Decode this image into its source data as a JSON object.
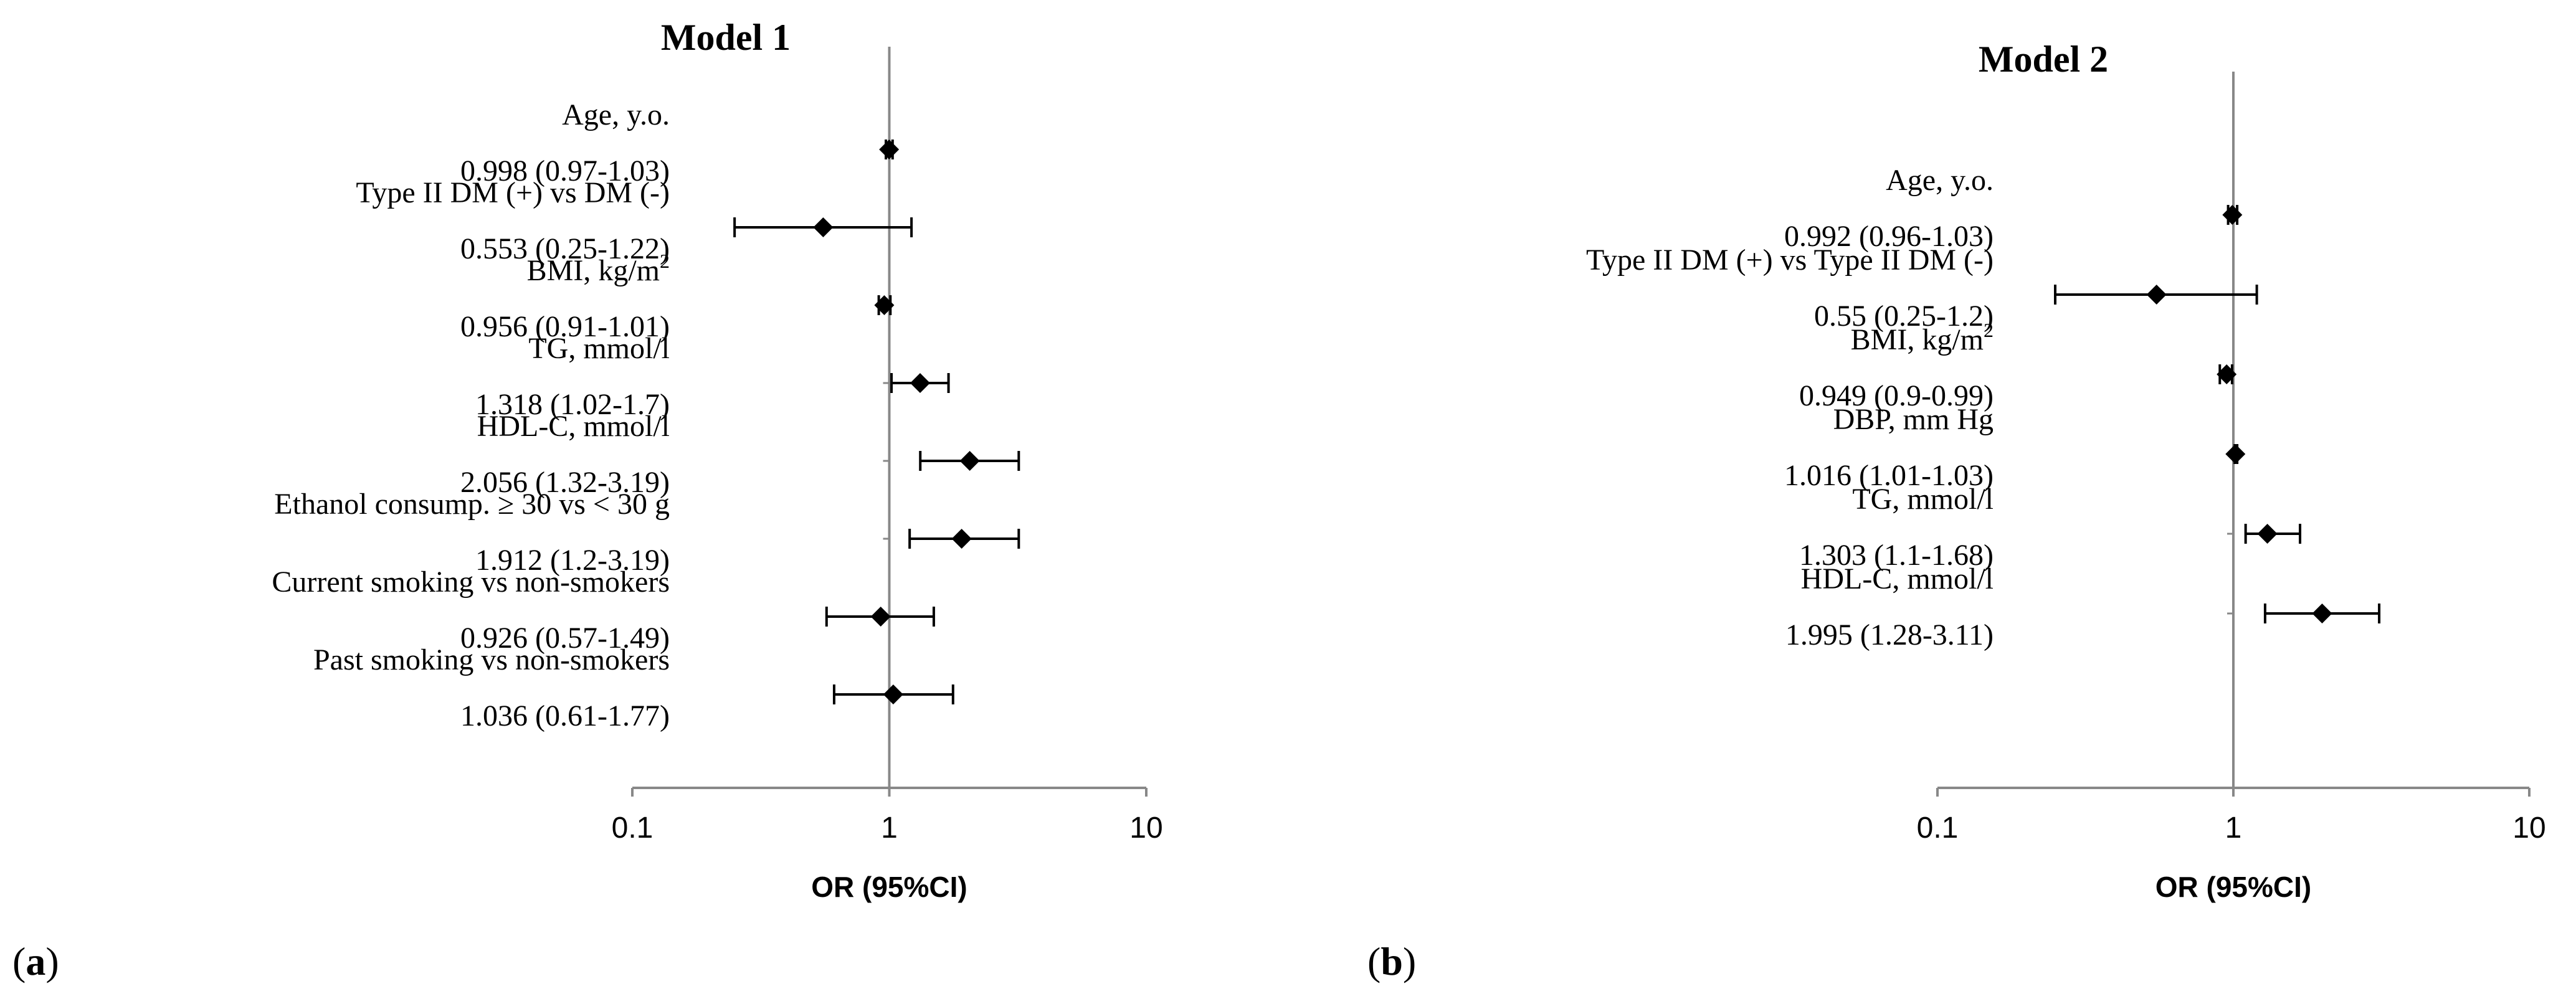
{
  "panel_labels": {
    "a": "a",
    "b": "b"
  },
  "chart_data": [
    {
      "type": "forest",
      "title": "Model 1",
      "xlabel": "OR (95%CI)",
      "xscale": "log",
      "xlim": [
        0.1,
        10
      ],
      "xticks": [
        "0.1",
        "1",
        "10"
      ],
      "reference_line": 1,
      "rows": [
        {
          "label": "Age, y.o.",
          "ci_text": "0.998 (0.97-1.03)",
          "or": 0.998,
          "lo": 0.97,
          "hi": 1.03
        },
        {
          "label": "Type II DM (+) vs DM (-)",
          "ci_text": "0.553 (0.25-1.22)",
          "or": 0.553,
          "lo": 0.25,
          "hi": 1.22
        },
        {
          "label": "BMI, kg/m",
          "sup": "2",
          "ci_text": "0.956 (0.91-1.01)",
          "or": 0.956,
          "lo": 0.91,
          "hi": 1.01
        },
        {
          "label": "TG, mmol/l",
          "ci_text": "1.318 (1.02-1.7)",
          "or": 1.318,
          "lo": 1.02,
          "hi": 1.7
        },
        {
          "label": "HDL-C, mmol/l",
          "ci_text": "2.056 (1.32-3.19)",
          "or": 2.056,
          "lo": 1.32,
          "hi": 3.19
        },
        {
          "label": "Ethanol consump. ≥ 30 vs < 30 g",
          "ci_text": "1.912 (1.2-3.19)",
          "or": 1.912,
          "lo": 1.2,
          "hi": 3.19
        },
        {
          "label": "Current smoking vs non-smokers",
          "ci_text": "0.926 (0.57-1.49)",
          "or": 0.926,
          "lo": 0.57,
          "hi": 1.49
        },
        {
          "label": "Past smoking vs non-smokers",
          "ci_text": "1.036 (0.61-1.77)",
          "or": 1.036,
          "lo": 0.61,
          "hi": 1.77
        }
      ]
    },
    {
      "type": "forest",
      "title": "Model 2",
      "xlabel": "OR (95%CI)",
      "xscale": "log",
      "xlim": [
        0.1,
        10
      ],
      "xticks": [
        "0.1",
        "1",
        "10"
      ],
      "reference_line": 1,
      "rows": [
        {
          "label": "Age, y.o.",
          "ci_text": "0.992 (0.96-1.03)",
          "or": 0.992,
          "lo": 0.96,
          "hi": 1.03
        },
        {
          "label": "Type II DM (+) vs Type II DM (-)",
          "ci_text": "0.55 (0.25-1.2)",
          "or": 0.55,
          "lo": 0.25,
          "hi": 1.2
        },
        {
          "label": "BMI, kg/m",
          "sup": "2",
          "ci_text": "0.949 (0.9-0.99)",
          "or": 0.949,
          "lo": 0.9,
          "hi": 0.99
        },
        {
          "label": "DBP, mm Hg",
          "ci_text": "1.016 (1.01-1.03)",
          "or": 1.016,
          "lo": 1.01,
          "hi": 1.03
        },
        {
          "label": "TG, mmol/l",
          "ci_text": "1.303 (1.1-1.68)",
          "or": 1.303,
          "lo": 1.1,
          "hi": 1.68
        },
        {
          "label": "HDL-C, mmol/l",
          "ci_text": "1.995 (1.28-3.11)",
          "or": 1.995,
          "lo": 1.28,
          "hi": 3.11
        }
      ]
    }
  ]
}
